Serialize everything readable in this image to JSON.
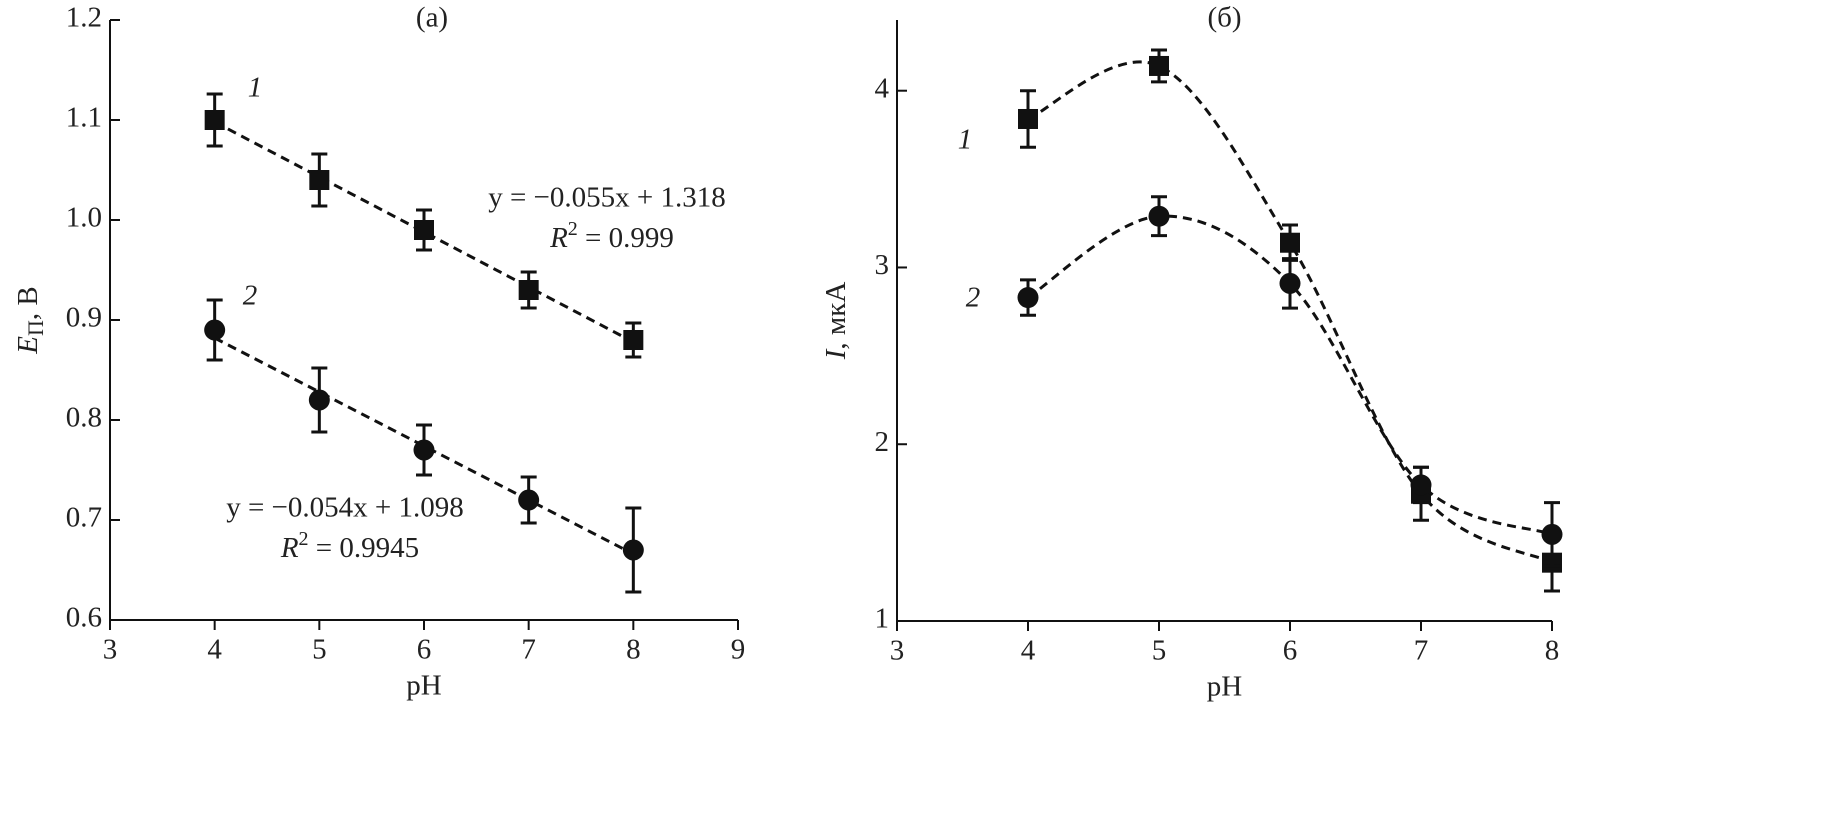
{
  "chart_data": [
    {
      "type": "scatter",
      "title": "(a)",
      "xlabel": "pH",
      "ylabel": {
        "symbol": "E",
        "subscript": "П",
        "unit": ", В"
      },
      "x": [
        4,
        5,
        6,
        7,
        8
      ],
      "xlim": [
        3,
        9
      ],
      "xticks": [
        3,
        4,
        5,
        6,
        7,
        8,
        9
      ],
      "ylim": [
        0.6,
        1.2
      ],
      "yticks": [
        0.6,
        0.7,
        0.8,
        0.9,
        {
          "value": 1,
          "label": "1.0"
        },
        1.1,
        1.2
      ],
      "line": "linear-fit",
      "color": "#111",
      "series": [
        {
          "name": "1",
          "marker": "square",
          "values": [
            1.1,
            1.04,
            0.99,
            0.93,
            0.88
          ],
          "errors": [
            0.026,
            0.026,
            0.02,
            0.018,
            0.017
          ],
          "fit": {
            "slope": -0.055,
            "intercept": 1.318
          },
          "equation": "y = −0.055x + 1.318",
          "r2": {
            "symbol": "R",
            "exponent": "2",
            "text": " = 0.999"
          }
        },
        {
          "name": "2",
          "marker": "circle",
          "values": [
            0.89,
            0.82,
            0.77,
            0.72,
            0.67
          ],
          "errors": [
            0.03,
            0.032,
            0.025,
            0.023,
            0.042
          ],
          "fit": {
            "slope": -0.054,
            "intercept": 1.098
          },
          "equation": "y = −0.054x + 1.098",
          "r2": {
            "symbol": "R",
            "exponent": "2",
            "text": " = 0.9945"
          }
        }
      ]
    },
    {
      "type": "scatter",
      "title": "(б)",
      "xlabel": "pH",
      "ylabel": {
        "symbol": "I",
        "unit": ", мкА"
      },
      "x": [
        4,
        5,
        6,
        7,
        8
      ],
      "xlim": [
        3,
        8
      ],
      "xticks": [
        3,
        4,
        5,
        6,
        7,
        8
      ],
      "ylim": [
        1,
        4.4
      ],
      "yticks": [
        1,
        2,
        3,
        4
      ],
      "line": "smooth",
      "color": "#111",
      "series": [
        {
          "name": "1",
          "marker": "square",
          "values": [
            3.84,
            4.14,
            3.14,
            1.72,
            1.33
          ],
          "errors": [
            0.16,
            0.09,
            0.1,
            0.15,
            0.16
          ]
        },
        {
          "name": "2",
          "marker": "circle",
          "values": [
            2.83,
            3.29,
            2.91,
            1.77,
            1.49
          ],
          "errors": [
            0.1,
            0.11,
            0.14,
            0.1,
            0.18
          ]
        }
      ]
    }
  ]
}
